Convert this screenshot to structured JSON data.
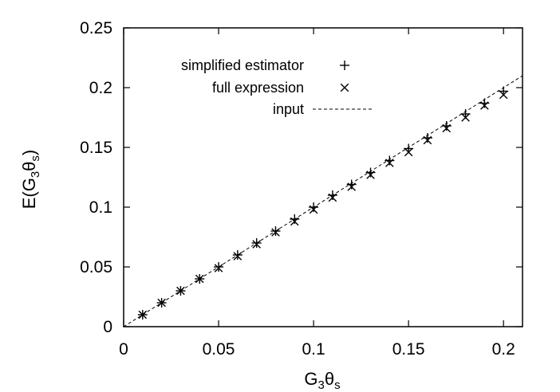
{
  "chart_data": {
    "type": "scatter",
    "xlabel": {
      "main": "G",
      "sub1": "3",
      "theta": "θ",
      "sub2": "s"
    },
    "ylabel": {
      "prefix": "E(G",
      "sub1": "3",
      "theta": "θ",
      "sub2": "s",
      "suffix": ")"
    },
    "xlim": [
      0,
      0.21
    ],
    "ylim": [
      0,
      0.25
    ],
    "xticks": [
      0,
      0.05,
      0.1,
      0.15,
      0.2
    ],
    "xtick_labels": [
      "0",
      "0.05",
      "0.1",
      "0.15",
      "0.2"
    ],
    "yticks": [
      0,
      0.05,
      0.1,
      0.15,
      0.2,
      0.25
    ],
    "ytick_labels": [
      "0",
      "0.05",
      "0.1",
      "0.15",
      "0.2",
      "0.25"
    ],
    "grid": false,
    "legend_position": "top-right",
    "series": [
      {
        "name": "simplified estimator",
        "marker": "plus",
        "x": [
          0.01,
          0.02,
          0.03,
          0.04,
          0.05,
          0.06,
          0.07,
          0.08,
          0.09,
          0.1,
          0.11,
          0.12,
          0.13,
          0.14,
          0.15,
          0.16,
          0.17,
          0.18,
          0.19,
          0.2
        ],
        "y": [
          0.01,
          0.02,
          0.03,
          0.04,
          0.05,
          0.06,
          0.07,
          0.08,
          0.09,
          0.1,
          0.11,
          0.119,
          0.129,
          0.139,
          0.149,
          0.158,
          0.168,
          0.178,
          0.187,
          0.197
        ]
      },
      {
        "name": "full expression",
        "marker": "cross",
        "x": [
          0.01,
          0.02,
          0.03,
          0.04,
          0.05,
          0.06,
          0.07,
          0.08,
          0.09,
          0.1,
          0.11,
          0.12,
          0.13,
          0.14,
          0.15,
          0.16,
          0.17,
          0.18,
          0.19,
          0.2
        ],
        "y": [
          0.01,
          0.02,
          0.03,
          0.04,
          0.049,
          0.059,
          0.069,
          0.079,
          0.088,
          0.098,
          0.108,
          0.117,
          0.127,
          0.137,
          0.146,
          0.156,
          0.166,
          0.175,
          0.185,
          0.194
        ]
      },
      {
        "name": "input",
        "marker": "dashed-line",
        "x": [
          0,
          0.21
        ],
        "y": [
          0,
          0.21
        ]
      }
    ]
  }
}
